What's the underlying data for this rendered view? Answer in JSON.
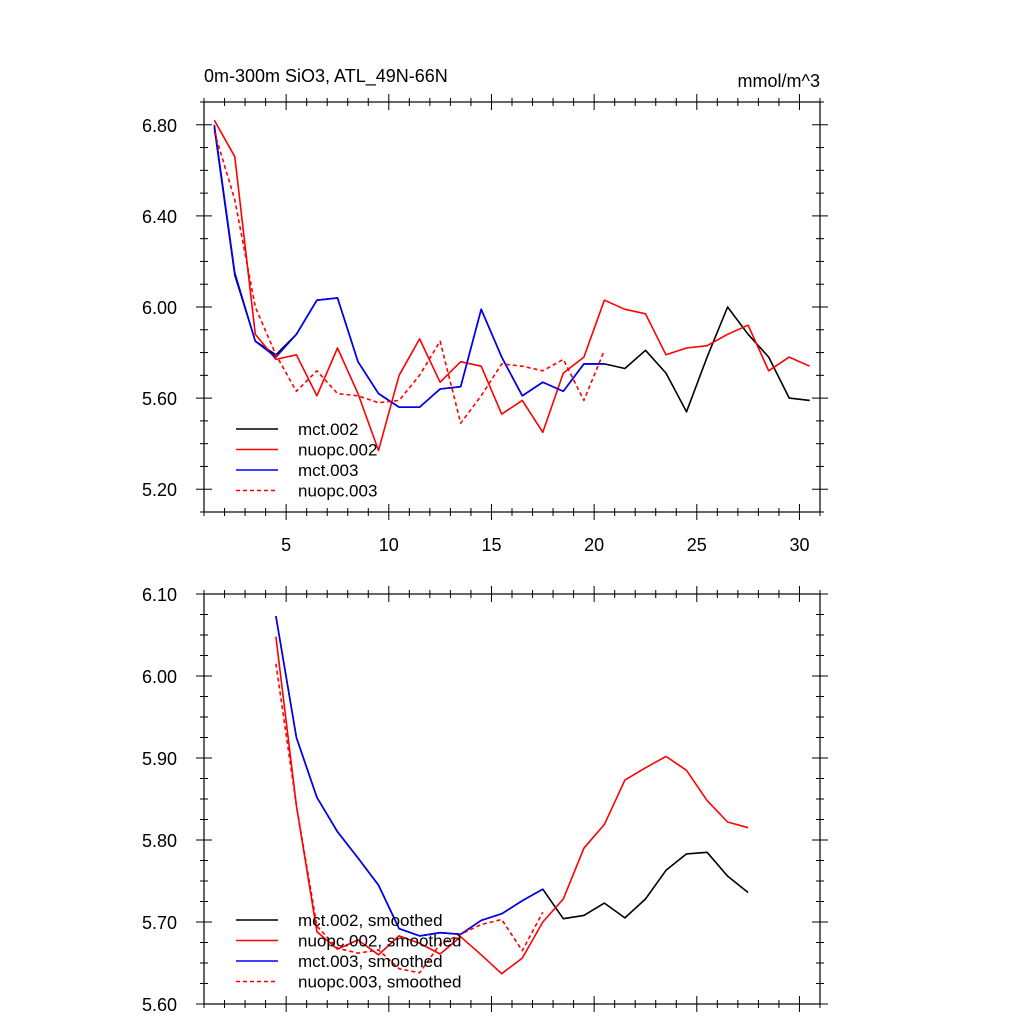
{
  "chart_data": [
    {
      "type": "line",
      "title": "0m-300m SiO3, ATL_49N-66N",
      "units": "mmol/m^3",
      "xlim": [
        1,
        31
      ],
      "ylim": [
        5.1,
        6.9
      ],
      "xticks": [
        5,
        10,
        15,
        20,
        25,
        30
      ],
      "xtick_labels": [
        "5",
        "10",
        "15",
        "20",
        "25",
        "30"
      ],
      "yticks": [
        5.2,
        5.6,
        6.0,
        6.4,
        6.8
      ],
      "ytick_labels": [
        "5.20",
        "5.60",
        "6.00",
        "6.40",
        "6.80"
      ],
      "legend_position": "bottom-left",
      "series": [
        {
          "name": "mct.002",
          "color": "#000000",
          "dash": "solid",
          "x": [
            1.5,
            2.5,
            3.5,
            4.5,
            5.5,
            6.5,
            7.5,
            8.5,
            9.5,
            10.5,
            11.5,
            12.5,
            13.5,
            14.5,
            15.5,
            16.5,
            17.5,
            18.5,
            19.5,
            20.5,
            21.5,
            22.5,
            23.5,
            24.5,
            25.5,
            26.5,
            27.5,
            28.5,
            29.5,
            30.5
          ],
          "y": [
            6.79,
            6.14,
            5.85,
            5.79,
            5.88,
            6.03,
            6.04,
            5.76,
            5.62,
            5.56,
            5.56,
            5.64,
            5.65,
            5.99,
            5.78,
            5.61,
            5.67,
            5.63,
            5.75,
            5.75,
            5.73,
            5.81,
            5.71,
            5.54,
            5.78,
            6.0,
            5.88,
            5.78,
            5.6,
            5.59
          ]
        },
        {
          "name": "nuopc.002",
          "color": "#ff0000",
          "dash": "solid",
          "x": [
            1.5,
            2.5,
            3.5,
            4.5,
            5.5,
            6.5,
            7.5,
            8.5,
            9.5,
            10.5,
            11.5,
            12.5,
            13.5,
            14.5,
            15.5,
            16.5,
            17.5,
            18.5,
            19.5,
            20.5,
            21.5,
            22.5,
            23.5,
            24.5,
            25.5,
            26.5,
            27.5,
            28.5,
            29.5,
            30.5
          ],
          "y": [
            6.82,
            6.66,
            5.88,
            5.77,
            5.79,
            5.61,
            5.82,
            5.62,
            5.37,
            5.7,
            5.86,
            5.67,
            5.76,
            5.74,
            5.53,
            5.59,
            5.45,
            5.71,
            5.78,
            6.03,
            5.99,
            5.97,
            5.79,
            5.82,
            5.83,
            5.88,
            5.92,
            5.72,
            5.78,
            5.74
          ]
        },
        {
          "name": "mct.003",
          "color": "#0000ff",
          "dash": "solid",
          "x": [
            1.5,
            2.5,
            3.5,
            4.5,
            5.5,
            6.5,
            7.5,
            8.5,
            9.5,
            10.5,
            11.5,
            12.5,
            13.5,
            14.5,
            15.5,
            16.5,
            17.5,
            18.5,
            19.5,
            20.5
          ],
          "y": [
            6.8,
            6.15,
            5.85,
            5.78,
            5.88,
            6.03,
            6.04,
            5.76,
            5.62,
            5.56,
            5.56,
            5.64,
            5.65,
            5.99,
            5.78,
            5.61,
            5.67,
            5.63,
            5.75,
            5.75
          ]
        },
        {
          "name": "nuopc.003",
          "color": "#ff0000",
          "dash": "dashed",
          "x": [
            1.5,
            2.5,
            3.5,
            4.5,
            5.5,
            6.5,
            7.5,
            8.5,
            9.5,
            10.5,
            11.5,
            12.5,
            13.5,
            14.5,
            15.5,
            16.5,
            17.5,
            18.5,
            19.5,
            20.5
          ],
          "y": [
            6.77,
            6.47,
            6.0,
            5.79,
            5.63,
            5.72,
            5.62,
            5.61,
            5.58,
            5.59,
            5.7,
            5.85,
            5.49,
            5.61,
            5.75,
            5.74,
            5.72,
            5.77,
            5.59,
            5.81
          ]
        }
      ]
    },
    {
      "type": "line",
      "xlim": [
        1,
        31
      ],
      "ylim": [
        5.6,
        6.1
      ],
      "xticks": [
        5,
        10,
        15,
        20,
        25,
        30
      ],
      "yticks": [
        5.6,
        5.7,
        5.8,
        5.9,
        6.0,
        6.1
      ],
      "ytick_labels": [
        "5.60",
        "5.70",
        "5.80",
        "5.90",
        "6.00",
        "6.10"
      ],
      "legend_position": "bottom-left",
      "series": [
        {
          "name": "mct.002, smoothed",
          "color": "#000000",
          "dash": "solid",
          "x": [
            4.5,
            5.5,
            6.5,
            7.5,
            8.5,
            9.5,
            10.5,
            11.5,
            12.5,
            13.5,
            14.5,
            15.5,
            16.5,
            17.5,
            18.5,
            19.5,
            20.5,
            21.5,
            22.5,
            23.5,
            24.5,
            25.5,
            26.5,
            27.5
          ],
          "y": [
            6.073,
            5.925,
            5.852,
            5.81,
            5.778,
            5.745,
            5.692,
            5.683,
            5.687,
            5.685,
            5.702,
            5.71,
            5.726,
            5.74,
            5.704,
            5.708,
            5.723,
            5.705,
            5.728,
            5.763,
            5.783,
            5.785,
            5.756,
            5.736
          ]
        },
        {
          "name": "nuopc.002, smoothed",
          "color": "#ff0000",
          "dash": "solid",
          "x": [
            4.5,
            5.5,
            6.5,
            7.5,
            8.5,
            9.5,
            10.5,
            11.5,
            12.5,
            13.5,
            14.5,
            15.5,
            16.5,
            17.5,
            18.5,
            19.5,
            20.5,
            21.5,
            22.5,
            23.5,
            24.5,
            25.5,
            26.5,
            27.5
          ],
          "y": [
            6.048,
            5.842,
            5.688,
            5.667,
            5.678,
            5.66,
            5.683,
            5.674,
            5.661,
            5.682,
            5.66,
            5.637,
            5.656,
            5.7,
            5.728,
            5.79,
            5.819,
            5.873,
            5.888,
            5.902,
            5.885,
            5.848,
            5.822,
            5.815
          ]
        },
        {
          "name": "mct.003, smoothed",
          "color": "#0000ff",
          "dash": "solid",
          "x": [
            4.5,
            5.5,
            6.5,
            7.5,
            8.5,
            9.5,
            10.5,
            11.5,
            12.5,
            13.5,
            14.5,
            15.5,
            16.5,
            17.5
          ],
          "y": [
            6.073,
            5.925,
            5.852,
            5.81,
            5.778,
            5.745,
            5.692,
            5.683,
            5.687,
            5.685,
            5.702,
            5.71,
            5.726,
            5.74
          ]
        },
        {
          "name": "nuopc.003, smoothed",
          "color": "#ff0000",
          "dash": "dashed",
          "x": [
            4.5,
            5.5,
            6.5,
            7.5,
            8.5,
            9.5,
            10.5,
            11.5,
            12.5,
            13.5,
            14.5,
            15.5,
            16.5,
            17.5
          ],
          "y": [
            6.015,
            5.842,
            5.695,
            5.668,
            5.662,
            5.666,
            5.643,
            5.638,
            5.673,
            5.685,
            5.697,
            5.703,
            5.665,
            5.712
          ]
        }
      ]
    }
  ]
}
